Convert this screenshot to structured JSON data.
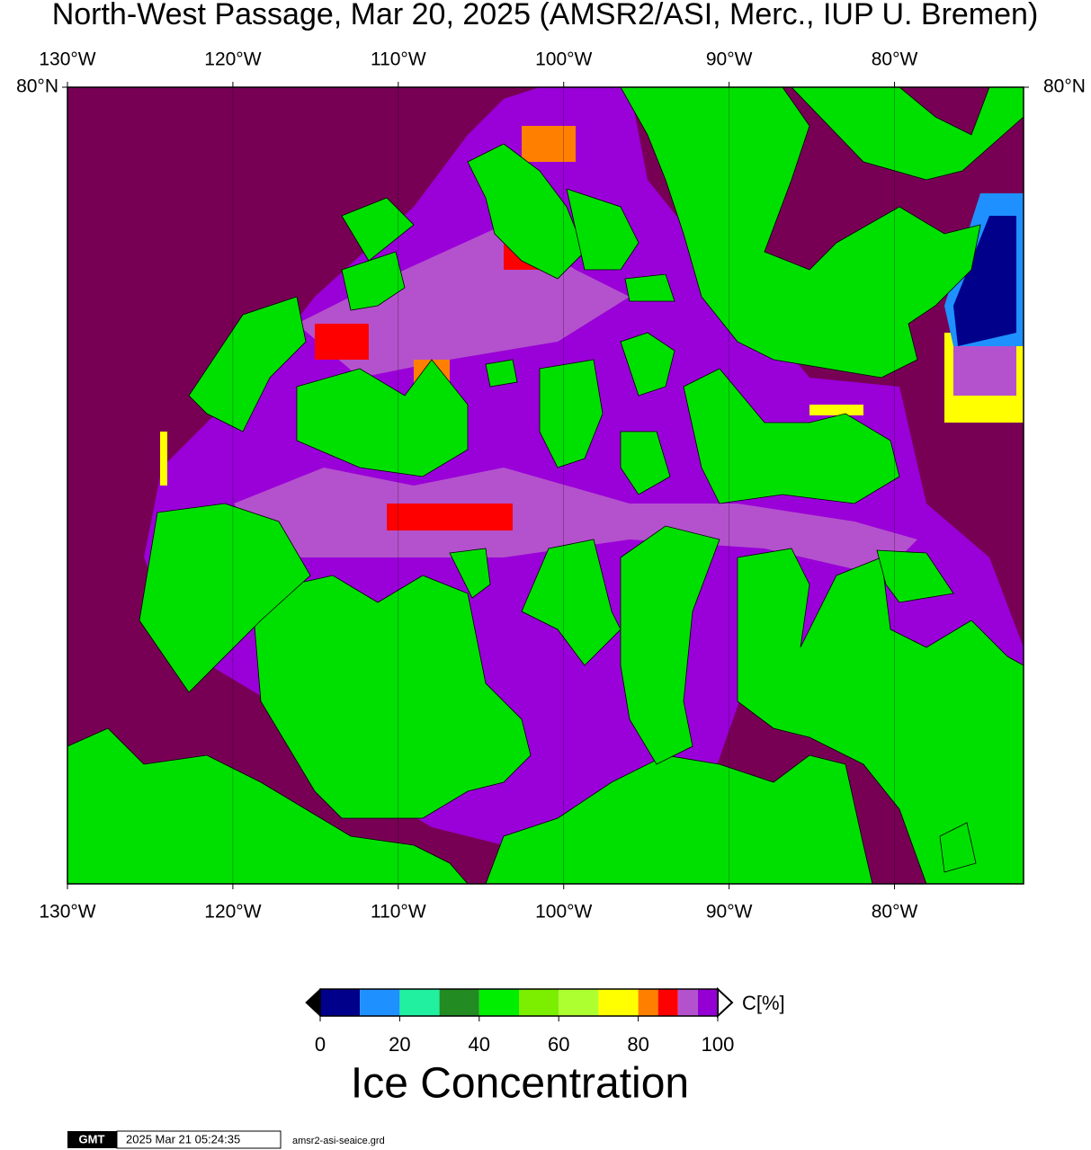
{
  "map": {
    "title": "North-West Passage, Mar 20, 2025 (AMSR2/ASI, Merc., IUP U. Bremen)",
    "xlim": [
      -130,
      -72.2
    ],
    "ylim": [
      67.1,
      80
    ],
    "lon_ticks": [
      {
        "value": -130,
        "label": "130°W"
      },
      {
        "value": -120,
        "label": "120°W"
      },
      {
        "value": -110,
        "label": "110°W"
      },
      {
        "value": -100,
        "label": "100°W"
      },
      {
        "value": -90,
        "label": "90°W"
      },
      {
        "value": -80,
        "label": "80°W"
      }
    ],
    "lat_ticks": [
      {
        "value": 80,
        "label": "80°N"
      }
    ]
  },
  "colorbar": {
    "lim": [
      0,
      100
    ],
    "ticks": [
      0,
      20,
      40,
      60,
      80,
      100
    ],
    "bounds": [
      0,
      10,
      20,
      30,
      40,
      50,
      60,
      70,
      80,
      85,
      90,
      95,
      100
    ],
    "colors": [
      "#00008b",
      "#1e90ff",
      "#20f0a0",
      "#228b22",
      "#00ee00",
      "#7cee00",
      "#adff2f",
      "#ffff00",
      "#ff7f00",
      "#ff0000",
      "#b452cd",
      "#9400d3"
    ],
    "under_color": "#000000",
    "over_color": "#ffffff",
    "unit": "C[%]",
    "label": "Ice Concentration"
  },
  "footer": {
    "logo": "GMT",
    "timestamp": "2025 Mar 21 05:24:35",
    "file": "amsr2-asi-seaice.grd"
  }
}
